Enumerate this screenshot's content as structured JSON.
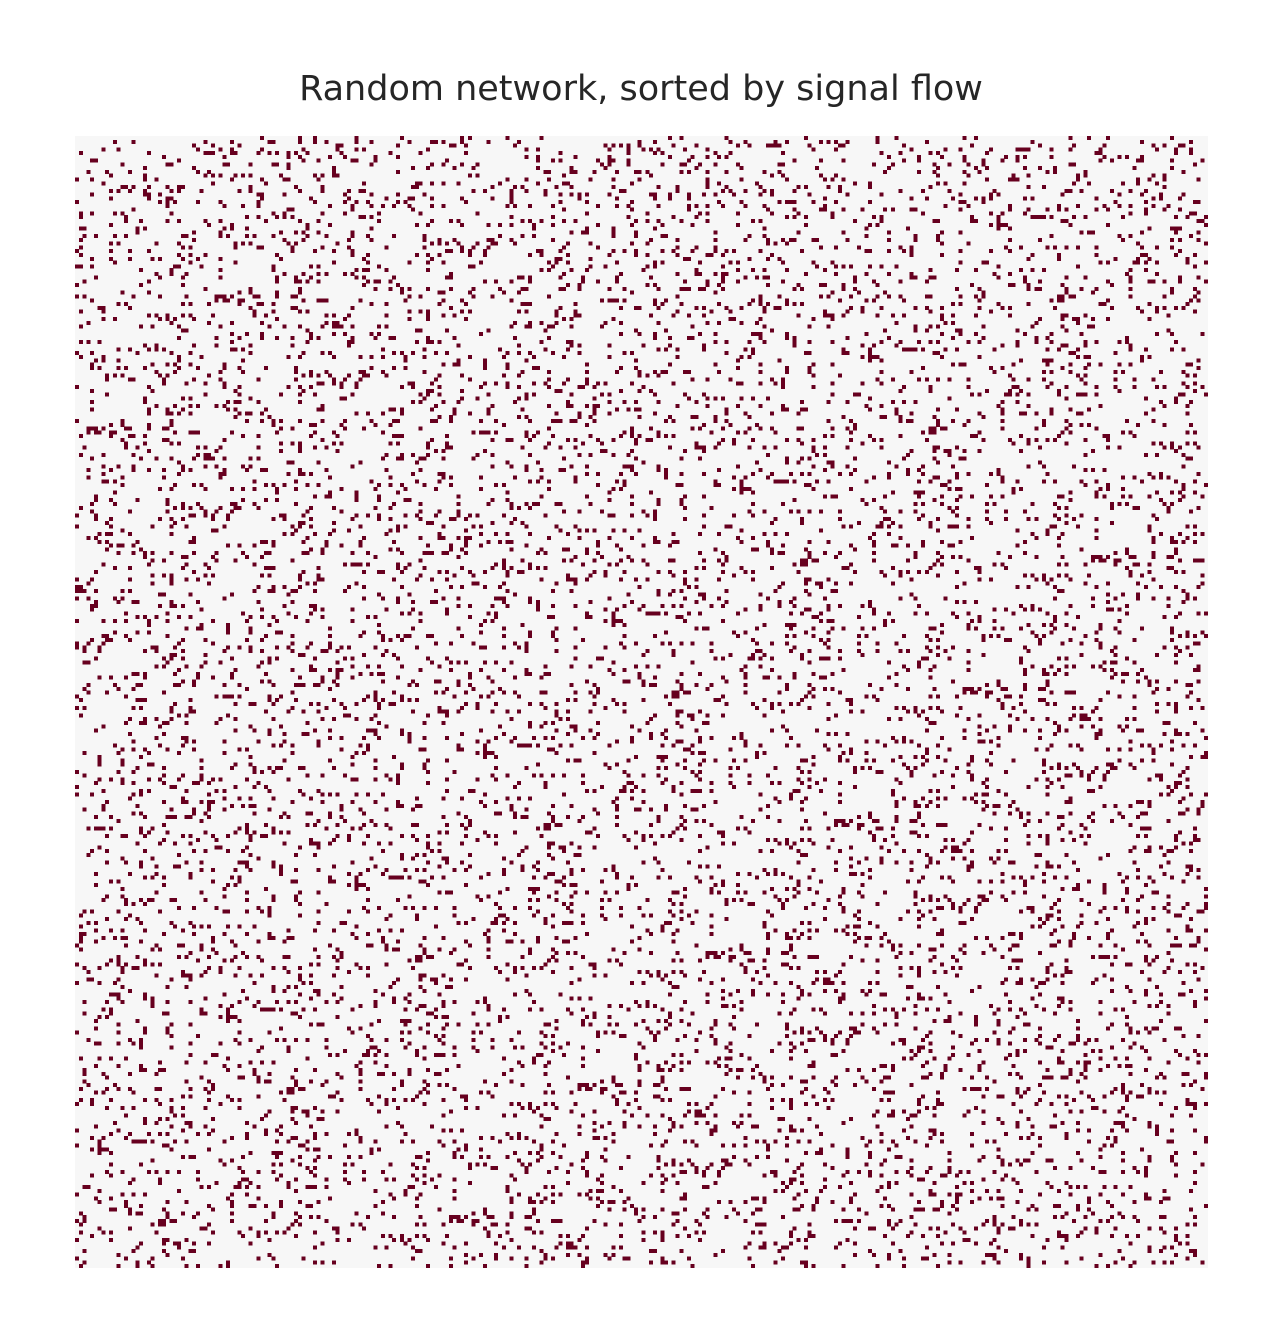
{
  "chart_data": {
    "type": "heatmap",
    "title": "Random network, sorted by signal flow",
    "xlabel": "",
    "ylabel": "",
    "grid": false,
    "legend": "none",
    "n_nodes": 300,
    "edge_density": 0.1,
    "values": [
      "no edge",
      "edge"
    ],
    "colors": {
      "background": "#ffffff",
      "no_edge": "#f7f7f7",
      "edge": "#67001f",
      "title_text": "#262626"
    }
  }
}
